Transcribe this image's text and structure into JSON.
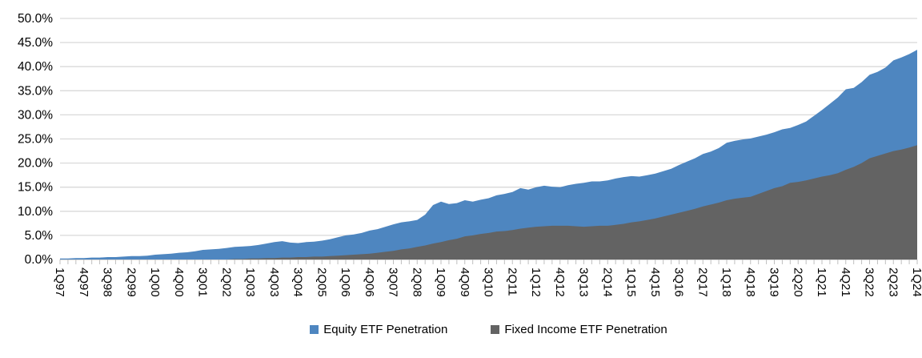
{
  "chart_data": {
    "type": "area",
    "title": "",
    "overlapping": true,
    "unit": "percent",
    "legend_position": "bottom",
    "grid": true,
    "x_tick_every": 3,
    "y_axis": {
      "min": 0,
      "max": 50,
      "step": 5,
      "tick_labels": [
        "0.0%",
        "5.0%",
        "10.0%",
        "15.0%",
        "20.0%",
        "25.0%",
        "30.0%",
        "35.0%",
        "40.0%",
        "45.0%",
        "50.0%"
      ]
    },
    "colors": {
      "equity": "#4E86C0",
      "fixed_income": "#636363",
      "gridline": "#D9D9D9",
      "axis_line": "#BFBFBF",
      "tick": "#BFBFBF",
      "text": "#000000"
    },
    "categories": [
      "1Q97",
      "2Q97",
      "3Q97",
      "4Q97",
      "1Q98",
      "2Q98",
      "3Q98",
      "4Q98",
      "1Q99",
      "2Q99",
      "3Q99",
      "4Q99",
      "1Q00",
      "2Q00",
      "3Q00",
      "4Q00",
      "1Q01",
      "2Q01",
      "3Q01",
      "4Q01",
      "1Q02",
      "2Q02",
      "3Q02",
      "4Q02",
      "1Q03",
      "2Q03",
      "3Q03",
      "4Q03",
      "1Q04",
      "2Q04",
      "3Q04",
      "4Q04",
      "1Q05",
      "2Q05",
      "3Q05",
      "4Q05",
      "1Q06",
      "2Q06",
      "3Q06",
      "4Q06",
      "1Q07",
      "2Q07",
      "3Q07",
      "4Q07",
      "1Q08",
      "2Q08",
      "3Q08",
      "4Q08",
      "1Q09",
      "2Q09",
      "3Q09",
      "4Q09",
      "1Q10",
      "2Q10",
      "3Q10",
      "4Q10",
      "1Q11",
      "2Q11",
      "3Q11",
      "4Q11",
      "1Q12",
      "2Q12",
      "3Q12",
      "4Q12",
      "1Q13",
      "2Q13",
      "3Q13",
      "4Q13",
      "1Q14",
      "2Q14",
      "3Q14",
      "4Q14",
      "1Q15",
      "2Q15",
      "3Q15",
      "4Q15",
      "1Q16",
      "2Q16",
      "3Q16",
      "4Q16",
      "1Q17",
      "2Q17",
      "3Q17",
      "4Q17",
      "1Q18",
      "2Q18",
      "3Q18",
      "4Q18",
      "1Q19",
      "2Q19",
      "3Q19",
      "4Q19",
      "1Q20",
      "2Q20",
      "3Q20",
      "4Q20",
      "1Q21",
      "2Q21",
      "3Q21",
      "4Q21",
      "1Q22",
      "2Q22",
      "3Q22",
      "4Q22",
      "1Q23",
      "2Q23",
      "3Q23",
      "4Q23",
      "1Q24"
    ],
    "series": [
      {
        "name": "Equity ETF Penetration",
        "color": "#4E86C0",
        "values": [
          0.2,
          0.2,
          0.3,
          0.3,
          0.4,
          0.4,
          0.5,
          0.5,
          0.6,
          0.7,
          0.7,
          0.8,
          1.0,
          1.1,
          1.2,
          1.4,
          1.5,
          1.7,
          2.0,
          2.1,
          2.2,
          2.4,
          2.6,
          2.7,
          2.8,
          3.0,
          3.3,
          3.6,
          3.8,
          3.5,
          3.4,
          3.6,
          3.7,
          3.9,
          4.2,
          4.6,
          5.0,
          5.2,
          5.5,
          6.0,
          6.3,
          6.8,
          7.3,
          7.7,
          7.9,
          8.2,
          9.3,
          11.3,
          12.0,
          11.5,
          11.7,
          12.3,
          12.0,
          12.4,
          12.7,
          13.3,
          13.6,
          14.0,
          14.8,
          14.5,
          15.0,
          15.3,
          15.1,
          15.0,
          15.4,
          15.7,
          15.9,
          16.2,
          16.2,
          16.4,
          16.8,
          17.1,
          17.3,
          17.2,
          17.5,
          17.8,
          18.3,
          18.8,
          19.6,
          20.3,
          21.0,
          21.9,
          22.4,
          23.1,
          24.2,
          24.6,
          24.9,
          25.1,
          25.5,
          25.9,
          26.4,
          27.0,
          27.3,
          27.9,
          28.6,
          29.8,
          31.0,
          32.3,
          33.6,
          35.3,
          35.6,
          36.8,
          38.3,
          38.9,
          39.8,
          41.3,
          41.9,
          42.6,
          43.5
        ]
      },
      {
        "name": "Fixed Income ETF Penetration",
        "color": "#636363",
        "values": [
          0.0,
          0.0,
          0.0,
          0.0,
          0.0,
          0.0,
          0.0,
          0.0,
          0.0,
          0.0,
          0.0,
          0.0,
          0.0,
          0.0,
          0.0,
          0.0,
          0.0,
          0.0,
          0.0,
          0.0,
          0.0,
          0.0,
          0.1,
          0.1,
          0.2,
          0.2,
          0.3,
          0.3,
          0.4,
          0.4,
          0.5,
          0.5,
          0.6,
          0.6,
          0.7,
          0.8,
          0.9,
          1.0,
          1.1,
          1.2,
          1.4,
          1.6,
          1.8,
          2.1,
          2.3,
          2.6,
          2.9,
          3.3,
          3.6,
          4.0,
          4.3,
          4.8,
          5.0,
          5.3,
          5.5,
          5.8,
          5.9,
          6.1,
          6.4,
          6.6,
          6.8,
          6.9,
          7.0,
          7.0,
          7.0,
          6.9,
          6.8,
          6.9,
          7.0,
          7.0,
          7.2,
          7.4,
          7.7,
          7.9,
          8.2,
          8.5,
          8.9,
          9.3,
          9.7,
          10.1,
          10.5,
          11.0,
          11.4,
          11.8,
          12.3,
          12.6,
          12.8,
          13.0,
          13.6,
          14.2,
          14.8,
          15.2,
          15.9,
          16.1,
          16.4,
          16.8,
          17.2,
          17.5,
          17.9,
          18.6,
          19.2,
          20.0,
          21.0,
          21.5,
          22.0,
          22.5,
          22.8,
          23.2,
          23.7
        ]
      }
    ]
  },
  "legend": {
    "equity_label": "Equity ETF Penetration",
    "fixed_income_label": "Fixed Income ETF Penetration"
  }
}
